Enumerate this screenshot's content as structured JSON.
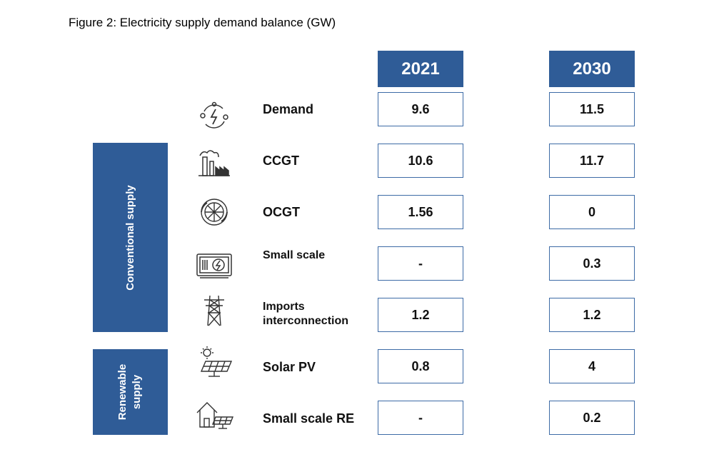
{
  "title": "Figure 2: Electricity supply demand balance (GW)",
  "bands": {
    "conventional": {
      "lines": [
        "Conventional supply"
      ]
    },
    "renewable": {
      "lines": [
        "Renewable",
        "supply"
      ]
    }
  },
  "colors": {
    "header_fill": "#2f5c97",
    "cell_border": "#3d6ba6"
  },
  "chart_data": {
    "type": "table",
    "title": "Figure 2: Electricity supply demand balance (GW)",
    "columns": [
      "2021",
      "2030"
    ],
    "rows": [
      {
        "label_lines": [
          "Demand"
        ],
        "icon": "energy-cycle-icon",
        "group": "",
        "values": [
          "9.6",
          "11.5"
        ]
      },
      {
        "label_lines": [
          "CCGT"
        ],
        "icon": "gas-plant-icon",
        "group": "Conventional supply",
        "values": [
          "10.6",
          "11.7"
        ]
      },
      {
        "label_lines": [
          "OCGT"
        ],
        "icon": "gas-turbine-icon",
        "group": "Conventional supply",
        "values": [
          "1.56",
          "0"
        ]
      },
      {
        "label_lines": [
          "Small scale"
        ],
        "icon": "generator-icon",
        "group": "Conventional supply",
        "values": [
          "-",
          "0.3"
        ]
      },
      {
        "label_lines": [
          "Imports",
          "interconnection"
        ],
        "icon": "transmission-tower-icon",
        "group": "Conventional supply",
        "values": [
          "1.2",
          "1.2"
        ]
      },
      {
        "label_lines": [
          "Solar PV"
        ],
        "icon": "solar-panel-icon",
        "group": "Renewable supply",
        "values": [
          "0.8",
          "4"
        ]
      },
      {
        "label_lines": [
          "Small scale RE"
        ],
        "icon": "house-solar-icon",
        "group": "Renewable supply",
        "values": [
          "-",
          "0.2"
        ]
      }
    ]
  }
}
